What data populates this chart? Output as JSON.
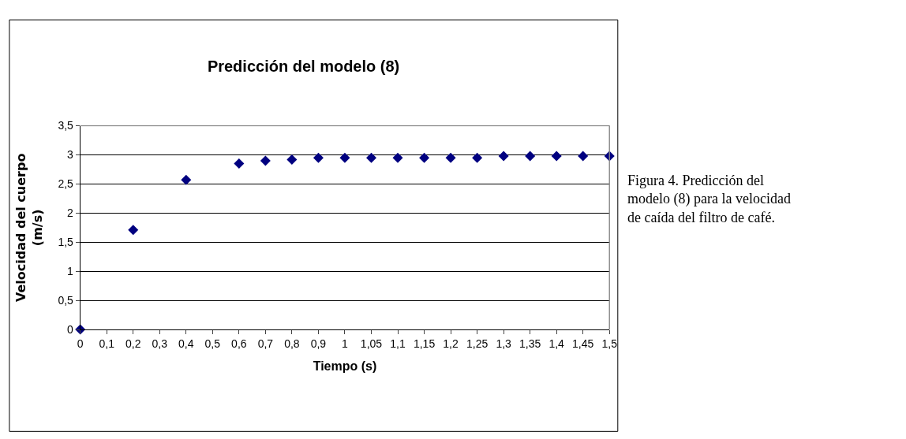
{
  "chart_data": {
    "type": "scatter",
    "title": "Predicción del modelo (8)",
    "xlabel": "Tiempo (s)",
    "ylabel": "Velocidad del cuerpo (m/s)",
    "categories": [
      "0",
      "0,1",
      "0,2",
      "0,3",
      "0,4",
      "0,5",
      "0,6",
      "0,7",
      "0,8",
      "0,9",
      "1",
      "1,05",
      "1,1",
      "1,15",
      "1,2",
      "1,25",
      "1,3",
      "1,35",
      "1,4",
      "1,45",
      "1,5"
    ],
    "series": [
      {
        "color": "#000080",
        "values": [
          0,
          null,
          1.71,
          null,
          2.57,
          null,
          2.85,
          2.9,
          2.92,
          2.95,
          2.95,
          2.95,
          2.95,
          2.95,
          2.95,
          2.95,
          2.98,
          2.98,
          2.98,
          2.98,
          2.98
        ]
      }
    ],
    "ylim": [
      0,
      3.5
    ],
    "yticks": [
      {
        "value": 0,
        "label": "0"
      },
      {
        "value": 0.5,
        "label": "0,5"
      },
      {
        "value": 1,
        "label": "1"
      },
      {
        "value": 1.5,
        "label": "1,5"
      },
      {
        "value": 2,
        "label": "2"
      },
      {
        "value": 2.5,
        "label": "2,5"
      },
      {
        "value": 3,
        "label": "3"
      },
      {
        "value": 3.5,
        "label": "3,5"
      }
    ],
    "grid": "y",
    "marker": "diamond",
    "annotations": [
      "Figura 4. Predicción del modelo (8) para la velocidad de caída del filtro de café."
    ]
  }
}
